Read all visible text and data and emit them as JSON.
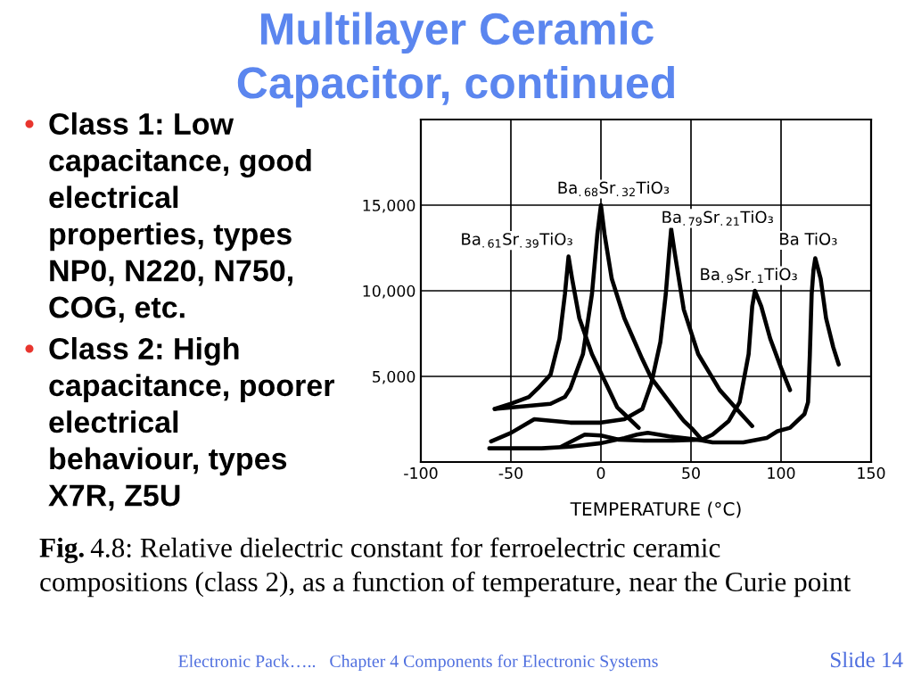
{
  "chart_data": {
    "type": "line",
    "title": "Multilayer Ceramic\nCapacitor, continued",
    "xlabel": "TEMPERATURE (°C)",
    "xlim": [
      -100,
      150
    ],
    "xticks": [
      -100,
      -50,
      0,
      50,
      100,
      150
    ],
    "ylim": [
      0,
      20000
    ],
    "yticks": [
      {
        "value": 5000,
        "label": "5,000"
      },
      {
        "value": 10000,
        "label": "10,000"
      },
      {
        "value": 15000,
        "label": "15,000"
      }
    ],
    "grid": true,
    "series": [
      {
        "name": "Ba$_{.68}$Sr$_{.32}$TiO₃",
        "color": "#000000",
        "x": [
          -59,
          -48,
          -28,
          -20,
          -17,
          -10,
          -5,
          -2,
          0,
          2,
          6,
          13,
          23,
          28,
          43,
          46,
          51,
          56
        ],
        "values": [
          3100,
          3200,
          3400,
          3800,
          4300,
          6300,
          9800,
          13300,
          15000,
          13300,
          10700,
          8400,
          6000,
          4900,
          2800,
          2400,
          1900,
          1300
        ]
      },
      {
        "name": "Ba$_{.61}$Sr$_{.39}$TiO₃",
        "color": "#000000",
        "x": [
          -59,
          -50,
          -40,
          -35,
          -28,
          -23,
          -20,
          -18,
          -16,
          -12,
          -5,
          5,
          9,
          13,
          21
        ],
        "values": [
          3100,
          3400,
          3800,
          4300,
          5100,
          7200,
          9800,
          12000,
          10700,
          8400,
          6300,
          4100,
          3200,
          2800,
          2000
        ]
      },
      {
        "name": "Ba$_{.79}$Sr$_{.21}$TiO₃",
        "color": "#000000",
        "x": [
          -61,
          -50,
          -37,
          -17,
          0,
          13,
          23,
          28,
          33,
          36,
          38,
          39,
          41,
          46,
          54,
          66,
          77,
          84
        ],
        "values": [
          1200,
          1700,
          2500,
          2300,
          2300,
          2500,
          3100,
          4600,
          7000,
          9800,
          12400,
          13600,
          12200,
          8900,
          6300,
          4200,
          2900,
          2100
        ]
      },
      {
        "name": "Ba$_{.9}$Sr$_{.1}$TiO₃",
        "color": "#000000",
        "x": [
          -22,
          -9,
          0,
          10,
          24,
          40,
          56,
          62,
          71,
          77,
          82,
          84,
          85.5,
          89,
          94,
          100,
          105
        ],
        "values": [
          900,
          1600,
          1550,
          1300,
          1250,
          1250,
          1300,
          1600,
          2400,
          3500,
          6300,
          9100,
          10000,
          9100,
          7200,
          5500,
          4200
        ]
      },
      {
        "name": "Ba TiO₃",
        "color": "#000000",
        "x": [
          -62,
          -33,
          -17,
          0,
          13,
          20,
          26,
          38,
          54,
          62,
          79,
          92,
          98,
          105,
          113,
          115,
          116,
          117,
          118,
          119,
          122,
          125,
          129,
          132
        ],
        "values": [
          800,
          800,
          900,
          1100,
          1400,
          1600,
          1700,
          1500,
          1300,
          1150,
          1150,
          1400,
          1800,
          2000,
          2800,
          3500,
          6300,
          9800,
          11200,
          11900,
          10700,
          8400,
          6700,
          5700
        ]
      }
    ],
    "annotations": [
      "Class 1: Low\ncapacitance, good\nelectrical\nproperties, types\nNP0, N220, N750,\nCOG, etc.",
      "Class 2: High\ncapacitance, poorer\nelectrical\nbehaviour, types\nX7R, Z5U",
      "Fig.",
      "4.8: Relative dielectric constant for ferroelectric ceramic",
      "compositions (class 2), as a function of temperature, near the Curie point",
      "Electronic Pack…..   Chapter 4 Components for Electronic Systems",
      "Slide 14"
    ]
  }
}
